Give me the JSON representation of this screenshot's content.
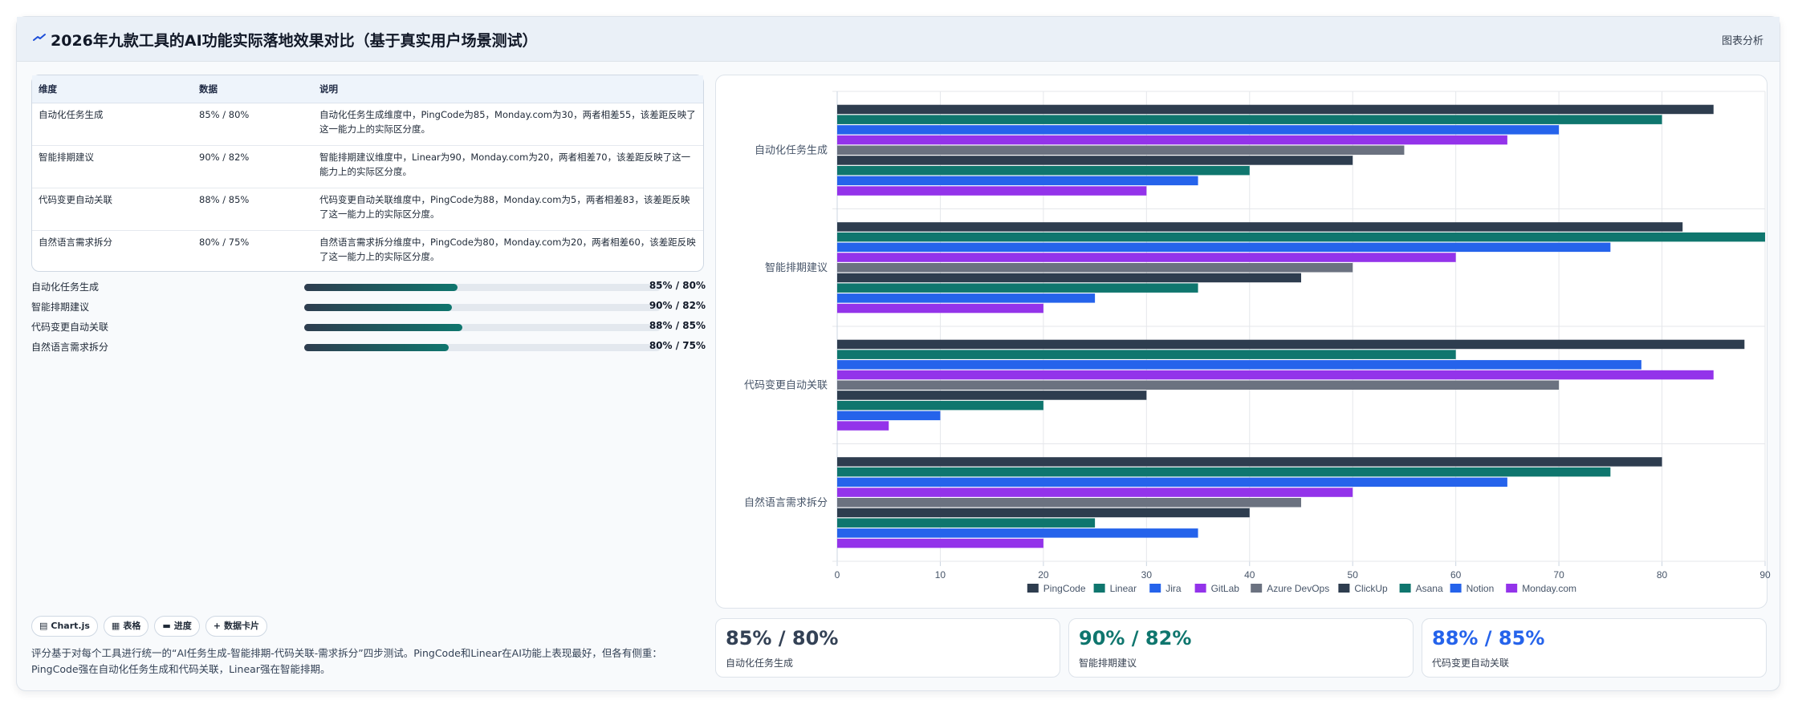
{
  "header": {
    "title": "2026年九款工具的AI功能实际落地效果对比（基于真实用户场景测试）",
    "tab": "图表分析"
  },
  "table": {
    "headers": [
      "维度",
      "数据",
      "说明"
    ],
    "rows": [
      {
        "dim": "自动化任务生成",
        "data": "85% / 80%",
        "desc": "自动化任务生成维度中，PingCode为85，Monday.com为30，两者相差55，该差距反映了这一能力上的实际区分度。"
      },
      {
        "dim": "智能排期建议",
        "data": "90% / 82%",
        "desc": "智能排期建议维度中，Linear为90，Monday.com为20，两者相差70，该差距反映了这一能力上的实际区分度。"
      },
      {
        "dim": "代码变更自动关联",
        "data": "88% / 85%",
        "desc": "代码变更自动关联维度中，PingCode为88，Monday.com为5，两者相差83，该差距反映了这一能力上的实际区分度。"
      },
      {
        "dim": "自然语言需求拆分",
        "data": "80% / 75%",
        "desc": "自然语言需求拆分维度中，PingCode为80，Monday.com为20，两者相差60，该差距反映了这一能力上的实际区分度。"
      }
    ]
  },
  "progress": [
    {
      "label": "自动化任务生成",
      "value": "85% / 80%",
      "fraction": 0.43
    },
    {
      "label": "智能排期建议",
      "value": "90% / 82%",
      "fraction": 0.415
    },
    {
      "label": "代码变更自动关联",
      "value": "88% / 85%",
      "fraction": 0.443
    },
    {
      "label": "自然语言需求拆分",
      "value": "80% / 75%",
      "fraction": 0.405
    }
  ],
  "chips": [
    {
      "icon": "chart-icon",
      "label": "Chart.js"
    },
    {
      "icon": "table-icon",
      "label": "表格"
    },
    {
      "icon": "progress-icon",
      "label": "进度"
    },
    {
      "icon": "plus-icon",
      "label": "数据卡片"
    }
  ],
  "note": "评分基于对每个工具进行统一的“AI任务生成-智能排期-代码关联-需求拆分”四步测试。PingCode和Linear在AI功能上表现最好，但各有侧重：PingCode强在自动化任务生成和代码关联，Linear强在智能排期。",
  "stats": [
    {
      "value": "85% / 80%",
      "label": "自动化任务生成",
      "color": "#334155"
    },
    {
      "value": "90% / 82%",
      "label": "智能排期建议",
      "color": "#0f766e"
    },
    {
      "value": "88% / 85%",
      "label": "代码变更自动关联",
      "color": "#2563eb"
    }
  ],
  "chart_data": {
    "type": "bar",
    "orientation": "horizontal",
    "categories": [
      "自动化任务生成",
      "智能排期建议",
      "代码变更自动关联",
      "自然语言需求拆分"
    ],
    "xlim": [
      0,
      90
    ],
    "xticks": [
      "0",
      "10",
      "20",
      "30",
      "40",
      "50",
      "60",
      "70",
      "80",
      "90"
    ],
    "grid": true,
    "legend_position": "bottom",
    "series": [
      {
        "name": "PingCode",
        "color": "#2e3d4f",
        "values": [
          85,
          82,
          88,
          80
        ]
      },
      {
        "name": "Linear",
        "color": "#0f766e",
        "values": [
          80,
          90,
          60,
          75
        ]
      },
      {
        "name": "Jira",
        "color": "#2563eb",
        "values": [
          70,
          75,
          78,
          65
        ]
      },
      {
        "name": "GitLab",
        "color": "#9333ea",
        "values": [
          65,
          60,
          85,
          50
        ]
      },
      {
        "name": "Azure DevOps",
        "color": "#6b7280",
        "values": [
          55,
          50,
          70,
          45
        ]
      },
      {
        "name": "ClickUp",
        "color": "#2e3d4f",
        "values": [
          50,
          45,
          30,
          40
        ]
      },
      {
        "name": "Asana",
        "color": "#0f766e",
        "values": [
          40,
          35,
          20,
          25
        ]
      },
      {
        "name": "Notion",
        "color": "#2563eb",
        "values": [
          35,
          25,
          10,
          35
        ]
      },
      {
        "name": "Monday.com",
        "color": "#9333ea",
        "values": [
          30,
          20,
          5,
          20
        ]
      }
    ]
  }
}
